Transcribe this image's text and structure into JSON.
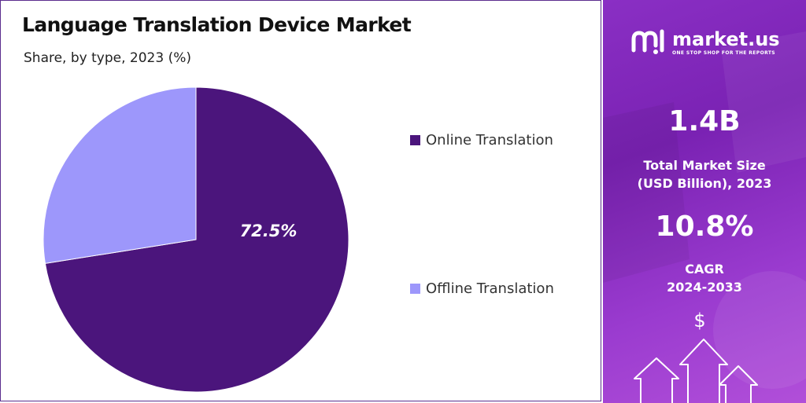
{
  "chart_data": {
    "type": "pie",
    "title": "Language Translation Device Market",
    "subtitle": "Share, by type, 2023 (%)",
    "categories": [
      "Online Translation",
      "Offline Translation"
    ],
    "values": [
      72.5,
      27.5
    ],
    "data_labels": [
      "72.5%",
      ""
    ],
    "colors": [
      "#4b157c",
      "#9d97fb"
    ],
    "legend_position": "right"
  },
  "sidebar": {
    "brand_name": "market.us",
    "brand_tagline": "ONE STOP SHOP FOR THE REPORTS",
    "market_size_value": "1.4B",
    "market_size_label_1": "Total Market Size",
    "market_size_label_2": "(USD Billion), 2023",
    "cagr_value": "10.8%",
    "cagr_label_1": "CAGR",
    "cagr_label_2": "2024-2033",
    "dollar_symbol": "$",
    "icons": [
      "market-us-logo-icon",
      "dollar-icon",
      "up-arrow-icon"
    ]
  }
}
